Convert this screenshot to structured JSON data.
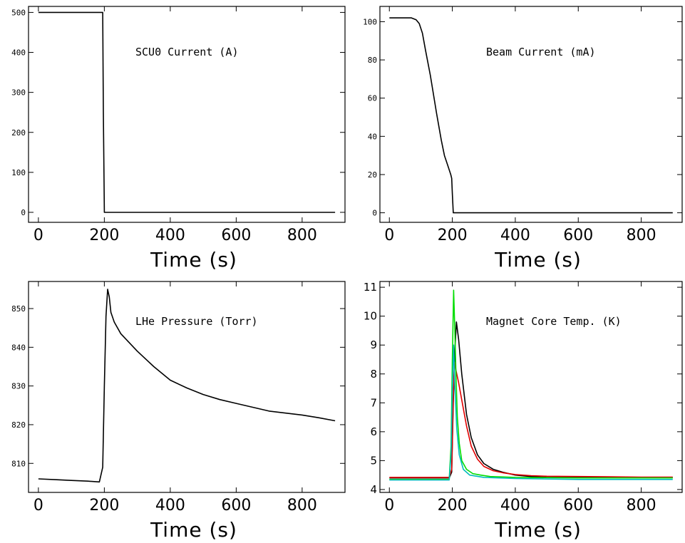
{
  "chart_data": [
    {
      "type": "line",
      "title": "SCU0 Current (A)",
      "xlabel": "Time (s)",
      "ylabel": "",
      "xlim": [
        -30,
        930
      ],
      "ylim": [
        -25,
        515
      ],
      "xticks": [
        0,
        200,
        400,
        600,
        800
      ],
      "yticks": [
        0,
        100,
        200,
        300,
        400,
        500
      ],
      "grid": false,
      "series": [
        {
          "color": "#000000",
          "x": [
            0,
            195,
            197,
            200,
            250,
            300,
            400,
            500,
            600,
            700,
            800,
            900
          ],
          "y": [
            500,
            500,
            250,
            0,
            0,
            0,
            0,
            0,
            0,
            0,
            0,
            0
          ]
        }
      ]
    },
    {
      "type": "line",
      "title": "Beam Current (mA)",
      "xlabel": "Time (s)",
      "ylabel": "",
      "xlim": [
        -30,
        930
      ],
      "ylim": [
        -5,
        108
      ],
      "xticks": [
        0,
        200,
        400,
        600,
        800
      ],
      "yticks": [
        0,
        20,
        40,
        60,
        80,
        100
      ],
      "grid": false,
      "series": [
        {
          "color": "#000000",
          "x": [
            0,
            70,
            85,
            95,
            105,
            115,
            130,
            150,
            165,
            175,
            185,
            195,
            198,
            200,
            203,
            250,
            400,
            600,
            800,
            900
          ],
          "y": [
            102,
            102,
            101,
            99,
            94,
            85,
            72,
            52,
            38,
            30,
            25,
            20,
            18,
            10,
            0,
            0,
            0,
            0,
            0,
            0
          ]
        }
      ]
    },
    {
      "type": "line",
      "title": "LHe Pressure (Torr)",
      "xlabel": "Time (s)",
      "ylabel": "",
      "xlim": [
        -30,
        930
      ],
      "ylim": [
        802.5,
        857
      ],
      "xticks": [
        0,
        200,
        400,
        600,
        800
      ],
      "yticks": [
        810,
        820,
        830,
        840,
        850
      ],
      "grid": false,
      "series": [
        {
          "color": "#000000",
          "x": [
            0,
            50,
            100,
            150,
            185,
            195,
            200,
            205,
            210,
            215,
            220,
            230,
            250,
            300,
            350,
            400,
            450,
            500,
            550,
            600,
            650,
            700,
            750,
            800,
            850,
            900
          ],
          "y": [
            806,
            805.8,
            805.6,
            805.4,
            805.2,
            809,
            830,
            848,
            855,
            853,
            849,
            846.5,
            843.5,
            839,
            835,
            831.5,
            829.5,
            827.8,
            826.5,
            825.5,
            824.5,
            823.5,
            823,
            822.5,
            821.8,
            821
          ]
        }
      ]
    },
    {
      "type": "line",
      "title": "Magnet Core Temp. (K)",
      "xlabel": "Time (s)",
      "ylabel": "",
      "xlim": [
        -30,
        930
      ],
      "ylim": [
        3.9,
        11.2
      ],
      "xticks": [
        0,
        200,
        400,
        600,
        800
      ],
      "yticks": [
        4,
        5,
        6,
        7,
        8,
        9,
        10,
        11
      ],
      "grid": false,
      "series": [
        {
          "color": "#000000",
          "x": [
            0,
            190,
            198,
            203,
            208,
            213,
            220,
            230,
            245,
            260,
            280,
            300,
            330,
            360,
            400,
            450,
            500,
            600,
            700,
            800,
            900
          ],
          "y": [
            4.4,
            4.4,
            4.6,
            7.0,
            8.8,
            9.8,
            9.2,
            8.0,
            6.6,
            5.8,
            5.2,
            4.9,
            4.7,
            4.6,
            4.5,
            4.45,
            4.42,
            4.42,
            4.41,
            4.41,
            4.41
          ]
        },
        {
          "color": "#e00000",
          "x": [
            0,
            190,
            198,
            203,
            207,
            212,
            220,
            230,
            245,
            260,
            280,
            300,
            330,
            360,
            400,
            450,
            500,
            600,
            700,
            800,
            900
          ],
          "y": [
            4.42,
            4.42,
            4.7,
            7.2,
            8.4,
            8.1,
            7.7,
            7.1,
            6.2,
            5.5,
            5.05,
            4.8,
            4.65,
            4.58,
            4.52,
            4.48,
            4.46,
            4.45,
            4.44,
            4.43,
            4.43
          ]
        },
        {
          "color": "#00dd00",
          "x": [
            0,
            190,
            196,
            200,
            204,
            208,
            212,
            216,
            222,
            230,
            245,
            265,
            290,
            320,
            400,
            600,
            800,
            900
          ],
          "y": [
            4.35,
            4.35,
            5.5,
            8.5,
            10.9,
            9.5,
            7.8,
            6.5,
            5.6,
            5.0,
            4.7,
            4.55,
            4.5,
            4.45,
            4.42,
            4.4,
            4.4,
            4.4
          ]
        },
        {
          "color": "#00bbbb",
          "x": [
            0,
            190,
            196,
            200,
            204,
            208,
            214,
            222,
            235,
            255,
            300,
            400,
            600,
            800,
            900
          ],
          "y": [
            4.33,
            4.33,
            5.2,
            7.4,
            9.0,
            7.6,
            6.1,
            5.2,
            4.7,
            4.5,
            4.42,
            4.38,
            4.35,
            4.35,
            4.35
          ]
        }
      ]
    }
  ]
}
